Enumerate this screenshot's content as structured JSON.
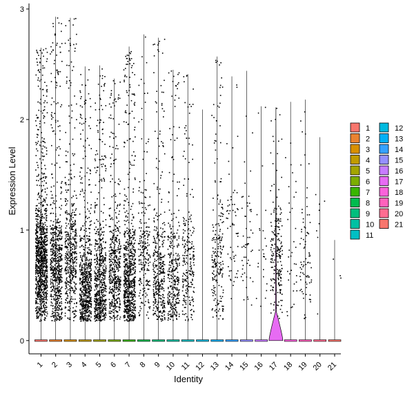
{
  "chart_data": {
    "type": "violin",
    "xlabel": "Identity",
    "ylabel": "Expression Level",
    "ylim": [
      -0.12,
      3.05
    ],
    "yticks": [
      0,
      1,
      2,
      3
    ],
    "categories": [
      "1",
      "2",
      "3",
      "4",
      "5",
      "6",
      "7",
      "8",
      "9",
      "10",
      "11",
      "12",
      "13",
      "14",
      "15",
      "16",
      "17",
      "18",
      "19",
      "20",
      "21"
    ],
    "colors": [
      "#F8766D",
      "#EA8331",
      "#D89000",
      "#C09B00",
      "#A3A500",
      "#7CAE00",
      "#39B600",
      "#00BB4E",
      "#00BF7D",
      "#00C1A3",
      "#00BFC4",
      "#00BAE0",
      "#00B0F6",
      "#35A2FF",
      "#9590FF",
      "#C77CFF",
      "#E76BF3",
      "#FA62DB",
      "#FF62BC",
      "#FF6C91",
      "#F8766D"
    ],
    "max_values": [
      2.65,
      2.93,
      2.92,
      2.48,
      2.49,
      2.37,
      2.66,
      2.77,
      2.74,
      2.45,
      2.41,
      2.09,
      2.57,
      2.39,
      2.44,
      2.12,
      2.11,
      2.16,
      2.18,
      1.84,
      0.91
    ],
    "dot_counts": [
      1100,
      650,
      500,
      650,
      620,
      480,
      720,
      230,
      380,
      320,
      240,
      0,
      220,
      60,
      55,
      25,
      210,
      35,
      80,
      8,
      3
    ],
    "dot_mean": [
      0.72,
      0.65,
      0.75,
      0.48,
      0.45,
      0.62,
      0.55,
      0.72,
      0.55,
      0.55,
      0.65,
      0.8,
      0.75,
      1.0,
      1.0,
      0.8,
      0.75,
      0.8,
      0.7,
      1.0,
      0.6
    ],
    "notable_violin": {
      "category": "17",
      "peak_value": 0.2
    },
    "legend_position": "right",
    "legend_columns": [
      [
        "1",
        "2",
        "3",
        "4",
        "5",
        "6",
        "7",
        "8",
        "9",
        "10",
        "11"
      ],
      [
        "12",
        "13",
        "14",
        "15",
        "16",
        "17",
        "18",
        "19",
        "20",
        "21"
      ]
    ]
  }
}
